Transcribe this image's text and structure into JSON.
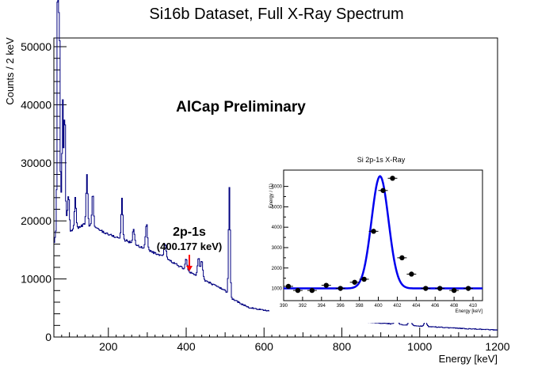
{
  "chart_data": [
    {
      "type": "line",
      "title": "Si16b Dataset, Full X-Ray Spectrum",
      "xlabel": "Energy [keV]",
      "ylabel": "Counts / 2 keV",
      "xlim": [
        60,
        1200
      ],
      "ylim": [
        0,
        51500
      ],
      "xticks": [
        200,
        400,
        600,
        800,
        1000,
        1200
      ],
      "yticks": [
        0,
        10000,
        20000,
        30000,
        40000,
        50000
      ],
      "line_color": "#000080",
      "annotation_text": "AlCap Preliminary",
      "peak_label": "2p-1s",
      "peak_energy_label": "(400.177 keV)",
      "arrow_color": "#ff0000",
      "arrow_target_x": 400,
      "background_points": [
        [
          60,
          16000
        ],
        [
          80,
          25000
        ],
        [
          100,
          18000
        ],
        [
          140,
          19500
        ],
        [
          170,
          18700
        ],
        [
          200,
          17700
        ],
        [
          250,
          16500
        ],
        [
          300,
          15000
        ],
        [
          350,
          13500
        ],
        [
          400,
          11500
        ],
        [
          450,
          9700
        ],
        [
          500,
          8000
        ],
        [
          520,
          6500
        ],
        [
          560,
          5100
        ],
        [
          600,
          4600
        ],
        [
          700,
          3600
        ],
        [
          800,
          3000
        ],
        [
          900,
          2400
        ],
        [
          1000,
          1900
        ],
        [
          1100,
          1500
        ],
        [
          1200,
          1200
        ]
      ],
      "peaks": [
        [
          70,
          47000,
          1.5
        ],
        [
          74,
          35000,
          1.5
        ],
        [
          83,
          17000,
          1.5
        ],
        [
          88,
          18000,
          1.5
        ],
        [
          98,
          6000,
          2
        ],
        [
          115,
          5500,
          2
        ],
        [
          145,
          8500,
          2
        ],
        [
          160,
          6000,
          2
        ],
        [
          235,
          7000,
          2
        ],
        [
          265,
          2500,
          2.5
        ],
        [
          298,
          4500,
          2.5
        ],
        [
          346,
          2500,
          2.5
        ],
        [
          400,
          1900,
          2.5
        ],
        [
          432,
          3500,
          2.5
        ],
        [
          440,
          3000,
          2.5
        ],
        [
          511,
          18500,
          2
        ],
        [
          760,
          1100,
          3
        ],
        [
          845,
          1200,
          3
        ],
        [
          940,
          3000,
          3
        ],
        [
          975,
          1600,
          3
        ],
        [
          1015,
          900,
          3
        ]
      ]
    },
    {
      "type": "scatter",
      "title": "Si 2p-1s X-Ray",
      "xlabel": "Energy [keV]",
      "ylabel": "Energy / (1)",
      "xlim": [
        390,
        411
      ],
      "ylim": [
        400,
        6800
      ],
      "xticks": [
        390,
        392,
        394,
        396,
        398,
        400,
        402,
        404,
        406,
        408,
        410
      ],
      "yticks": [
        1000,
        1500,
        2000,
        2500,
        3000,
        3500,
        4000,
        4500,
        5000,
        5500,
        6000
      ],
      "ytick_labels": [
        "1000",
        "2000",
        "3000",
        "4000",
        "5000",
        "6000"
      ],
      "x": [
        390.5,
        391.5,
        393.0,
        394.5,
        396.0,
        397.5,
        398.5,
        399.5,
        400.5,
        401.5,
        402.5,
        403.5,
        405.0,
        406.5,
        408.0,
        409.5
      ],
      "y": [
        1100,
        900,
        900,
        1150,
        1000,
        1300,
        1450,
        3800,
        5800,
        6400,
        2500,
        1700,
        1000,
        1000,
        900,
        1000
      ],
      "xerr": 0.5,
      "fit": {
        "color": "#0000ee",
        "baseline": 1000,
        "amplitude": 5500,
        "mean": 400.18,
        "sigma": 0.9
      }
    }
  ]
}
